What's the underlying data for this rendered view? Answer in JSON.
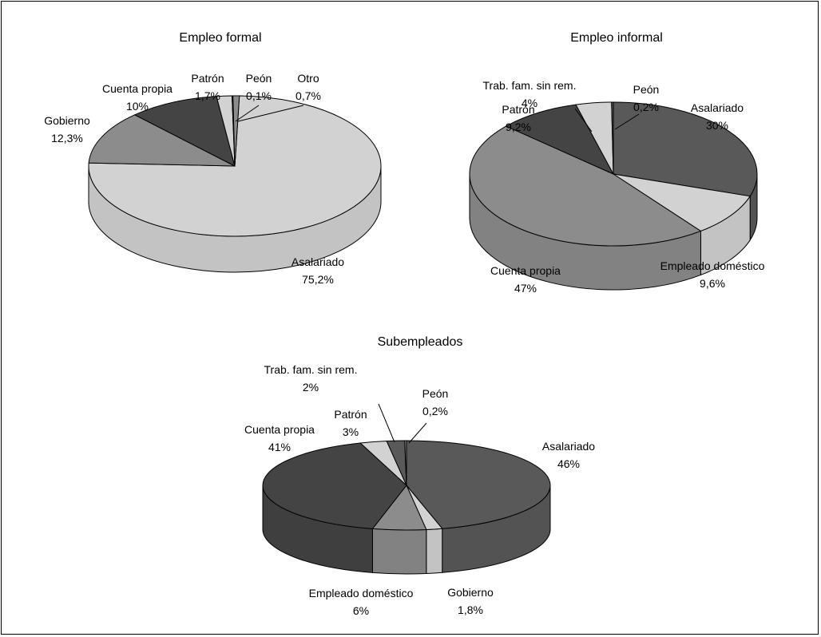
{
  "colors": {
    "light": "#d2d2d2",
    "mid": "#8c8c8c",
    "dark": "#595959",
    "darker": "#444444",
    "edge": "#000000"
  },
  "chart_data": [
    {
      "type": "pie",
      "title": "Empleo formal",
      "slices": [
        {
          "label": "Asalariado",
          "value": 75.2,
          "text": "75,2%",
          "color": "light"
        },
        {
          "label": "Gobierno",
          "value": 12.3,
          "text": "12,3%",
          "color": "mid"
        },
        {
          "label": "Cuenta propia",
          "value": 10,
          "text": "10%",
          "color": "darker"
        },
        {
          "label": "Patrón",
          "value": 1.7,
          "text": "1,7%",
          "color": "light"
        },
        {
          "label": "Peón",
          "value": 0.1,
          "text": "0,1%",
          "color": "dark"
        },
        {
          "label": "Otro",
          "value": 0.7,
          "text": "0,7%",
          "color": "mid"
        }
      ]
    },
    {
      "type": "pie",
      "title": "Empleo informal",
      "slices": [
        {
          "label": "Asalariado",
          "value": 30,
          "text": "30%",
          "color": "dark"
        },
        {
          "label": "Empleado doméstico",
          "value": 9.6,
          "text": "9,6%",
          "color": "light"
        },
        {
          "label": "Cuenta propia",
          "value": 47,
          "text": "47%",
          "color": "mid"
        },
        {
          "label": "Patrón",
          "value": 9.2,
          "text": "9,2%",
          "color": "darker"
        },
        {
          "label": "Trab. fam. sin rem.",
          "value": 4,
          "text": "4%",
          "color": "light"
        },
        {
          "label": "Peón",
          "value": 0.2,
          "text": "0,2%",
          "color": "dark"
        }
      ]
    },
    {
      "type": "pie",
      "title": "Subempleados",
      "slices": [
        {
          "label": "Asalariado",
          "value": 46,
          "text": "46%",
          "color": "dark"
        },
        {
          "label": "Gobierno",
          "value": 1.8,
          "text": "1,8%",
          "color": "light"
        },
        {
          "label": "Empleado doméstico",
          "value": 6,
          "text": "6%",
          "color": "mid"
        },
        {
          "label": "Cuenta propia",
          "value": 41,
          "text": "41%",
          "color": "darker"
        },
        {
          "label": "Patrón",
          "value": 3,
          "text": "3%",
          "color": "light"
        },
        {
          "label": "Trab. fam. sin rem.",
          "value": 2,
          "text": "2%",
          "color": "dark"
        },
        {
          "label": "Peón",
          "value": 0.2,
          "text": "0,2%",
          "color": "mid"
        }
      ]
    }
  ]
}
